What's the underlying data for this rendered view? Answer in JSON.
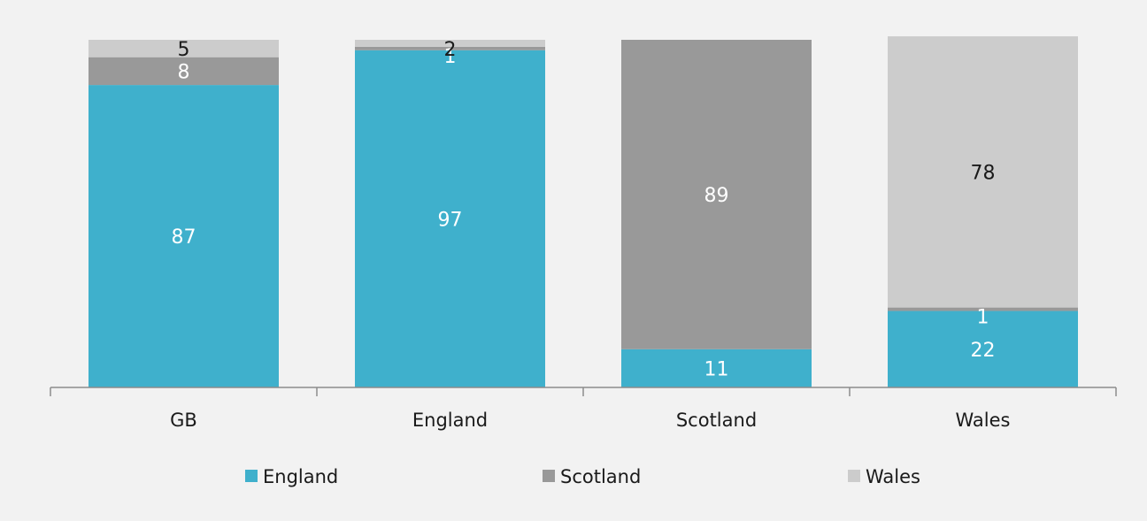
{
  "chart_data": {
    "type": "bar",
    "stacked": true,
    "title": "",
    "xlabel": "",
    "ylabel": "",
    "ylim": [
      0,
      100
    ],
    "categories": [
      "GB",
      "England",
      "Scotland",
      "Wales"
    ],
    "series": [
      {
        "name": "England",
        "color": "#3fb0cc",
        "values": [
          87,
          97,
          11,
          22
        ],
        "label_color": "#ffffff"
      },
      {
        "name": "Scotland",
        "color": "#999999",
        "values": [
          8,
          1,
          89,
          1
        ],
        "label_color": "#ffffff"
      },
      {
        "name": "Wales",
        "color": "#cccccc",
        "values": [
          5,
          2,
          0,
          78
        ],
        "label_color": "#1a1a1a"
      }
    ],
    "data_labels": [
      [
        "87",
        "97",
        "11",
        "22"
      ],
      [
        "8",
        "1",
        "89",
        "1"
      ],
      [
        "5",
        "2",
        "",
        "78"
      ]
    ],
    "legend": {
      "position": "bottom"
    },
    "grid": false
  },
  "colors": {
    "background": "#f2f2f2",
    "axis": "#8c8c8c",
    "tick_label": "#1a1a1a"
  }
}
